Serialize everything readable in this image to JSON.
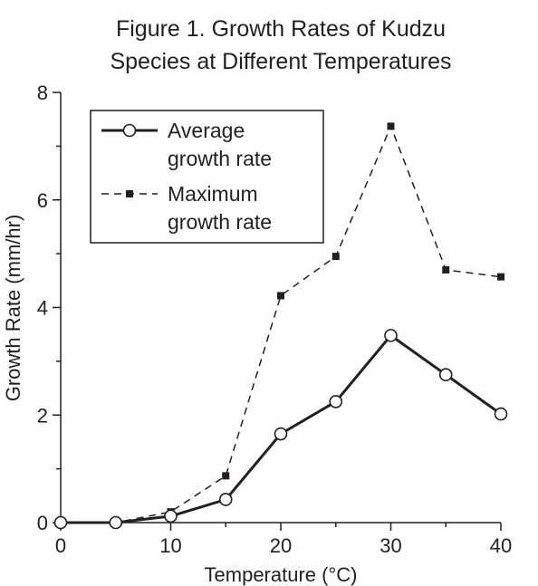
{
  "chart_data": {
    "type": "line",
    "title_lines": [
      "Figure 1. Growth Rates of Kudzu",
      "Species at Different Temperatures"
    ],
    "xlabel": "Temperature (°C)",
    "ylabel": "Growth Rate (mm/hr)",
    "x": [
      0,
      5,
      10,
      15,
      20,
      25,
      30,
      35,
      40
    ],
    "xlim": [
      0,
      40
    ],
    "ylim": [
      0,
      8
    ],
    "x_ticks": [
      0,
      10,
      20,
      30,
      40
    ],
    "x_minor_ticks": [
      5,
      15,
      25,
      35
    ],
    "y_ticks": [
      0,
      2,
      4,
      6,
      8
    ],
    "y_minor_ticks": [
      1,
      3,
      5,
      7
    ],
    "grid": false,
    "legend_position": "top-left",
    "series": [
      {
        "name_lines": [
          "Average",
          "growth rate"
        ],
        "style": "solid",
        "marker": "open-circle",
        "values": [
          0.0,
          0.0,
          0.12,
          0.43,
          1.65,
          2.25,
          3.48,
          2.75,
          2.02
        ]
      },
      {
        "name_lines": [
          "Maximum",
          "growth rate"
        ],
        "style": "dashed",
        "marker": "filled-square",
        "values": [
          0.0,
          0.0,
          0.2,
          0.87,
          4.22,
          4.95,
          7.37,
          4.7,
          4.57
        ]
      }
    ],
    "colors": {
      "ink": "#231f20",
      "background": "#ffffff"
    }
  }
}
